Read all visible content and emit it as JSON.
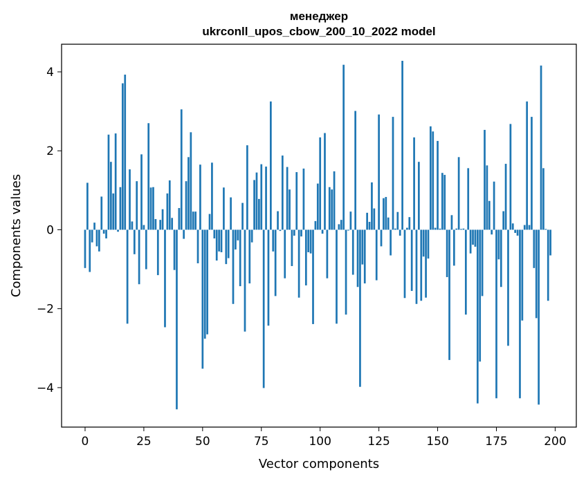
{
  "chart_data": {
    "type": "bar",
    "title_line1": "менеджер",
    "title_line2": "ukrconll_upos_cbow_200_10_2022 model",
    "xlabel": "Vector components",
    "ylabel": "Components values",
    "xlim": [
      -10,
      209
    ],
    "ylim": [
      -5.0,
      4.7
    ],
    "xticks": [
      0,
      25,
      50,
      75,
      100,
      125,
      150,
      175,
      200
    ],
    "yticks": [
      -4,
      -2,
      0,
      2,
      4
    ],
    "ytick_labels": [
      "−4",
      "−2",
      "0",
      "2",
      "4"
    ],
    "bar_color": "#1f77b4",
    "grid": false,
    "values": [
      -0.97,
      1.19,
      -1.07,
      -0.32,
      0.18,
      -0.42,
      -0.55,
      0.84,
      -0.1,
      -0.22,
      2.41,
      1.72,
      0.92,
      2.44,
      -0.05,
      1.08,
      3.71,
      3.93,
      -2.38,
      1.53,
      0.21,
      -0.62,
      1.23,
      -1.38,
      1.91,
      0.12,
      -1.0,
      2.7,
      1.07,
      1.08,
      0.27,
      -1.15,
      0.25,
      0.52,
      -2.47,
      0.92,
      1.25,
      0.3,
      -1.02,
      -4.55,
      0.55,
      3.05,
      -0.23,
      1.23,
      1.84,
      2.47,
      0.46,
      0.46,
      -0.85,
      1.65,
      -3.52,
      -2.76,
      -2.65,
      0.4,
      1.7,
      -0.22,
      -0.78,
      -0.55,
      -0.57,
      1.07,
      -0.87,
      -0.72,
      0.82,
      -1.88,
      -0.5,
      -0.27,
      -1.43,
      0.68,
      -2.58,
      2.14,
      -1.36,
      -0.32,
      1.26,
      1.45,
      0.78,
      1.66,
      -4.01,
      1.6,
      -2.43,
      3.25,
      -0.55,
      -1.68,
      0.47,
      -0.03,
      1.88,
      -1.23,
      1.59,
      1.02,
      -0.92,
      -0.15,
      1.46,
      -1.72,
      -0.17,
      1.55,
      -1.41,
      -0.57,
      -0.6,
      -2.39,
      0.22,
      1.17,
      2.34,
      -0.1,
      2.45,
      -1.23,
      1.08,
      1.02,
      1.48,
      -2.38,
      0.14,
      0.25,
      4.18,
      -2.15,
      -0.02,
      0.46,
      -1.14,
      3.01,
      -1.45,
      -3.98,
      -0.88,
      -1.36,
      0.43,
      0.2,
      1.2,
      0.54,
      -1.28,
      2.92,
      -0.42,
      0.8,
      0.83,
      0.31,
      -0.65,
      2.86,
      0.03,
      0.45,
      -0.15,
      4.28,
      -1.73,
      0.05,
      0.32,
      -1.55,
      2.34,
      -1.88,
      1.72,
      -1.8,
      -0.68,
      -1.72,
      -0.73,
      2.62,
      2.49,
      0.05,
      2.25,
      0.03,
      1.44,
      1.39,
      -1.2,
      -3.3,
      0.37,
      -0.91,
      0.03,
      1.84,
      0.02,
      0.03,
      -2.15,
      1.56,
      -0.6,
      -0.38,
      -0.43,
      -4.4,
      -3.34,
      -1.68,
      2.53,
      1.63,
      0.73,
      -0.12,
      1.22,
      -4.27,
      -0.75,
      -1.45,
      0.47,
      1.67,
      -2.94,
      2.68,
      0.16,
      -0.08,
      -0.15,
      -4.27,
      -2.3,
      0.12,
      3.25,
      0.12,
      2.86,
      -0.97,
      -2.24,
      -4.43,
      4.16,
      1.56,
      0.02,
      -1.8,
      -0.65
    ]
  }
}
